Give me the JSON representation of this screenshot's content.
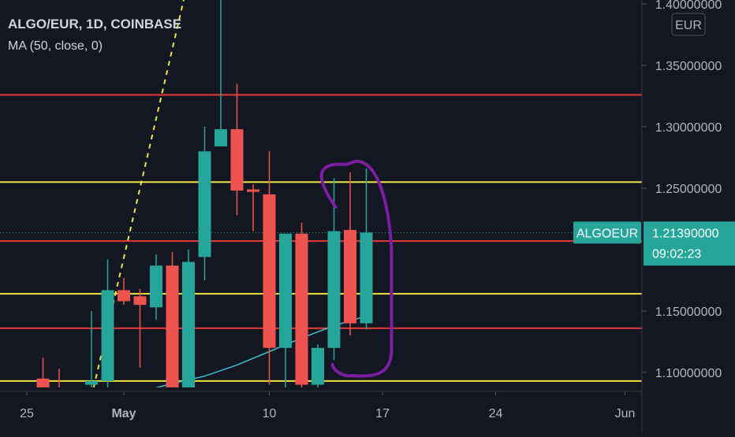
{
  "header": {
    "symbol_title": "ALGO/EUR, 1D, COINBASE",
    "indicator": "MA (50, close, 0)"
  },
  "currency_badge": "EUR",
  "price_tag": {
    "label": "ALGOEUR",
    "price": "1.21390000",
    "countdown": "09:02:23"
  },
  "colors": {
    "background": "#131722",
    "up": "#26a69a",
    "down": "#ef5350",
    "ma": "#3fbfcf",
    "yellow_line": "#f0e442",
    "red_line": "#e53935",
    "annotation": "#7b1fa2",
    "axis_text": "#b2b5be"
  },
  "chart_data": {
    "type": "candlestick",
    "title": "ALGO/EUR, 1D, COINBASE",
    "y_axis": {
      "ticks": [
        1.4,
        1.35,
        1.3,
        1.25,
        1.2,
        1.15,
        1.1
      ],
      "tick_labels": [
        "1.40000000",
        "1.35000000",
        "1.30000000",
        "1.25000000",
        "",
        "1.15000000",
        "1.10000000"
      ],
      "range": [
        1.0775,
        1.4025
      ]
    },
    "x_axis": {
      "tick_labels": [
        "25",
        "May",
        "10",
        "17",
        "24",
        "Jun"
      ],
      "tick_dates": [
        "2021-04-25",
        "2021-05-01",
        "2021-05-10",
        "2021-05-17",
        "2021-05-24",
        "2021-06-01"
      ],
      "range": [
        "2021-04-23",
        "2021-06-02"
      ]
    },
    "candles": [
      {
        "date": "2021-04-26",
        "open": 1.095,
        "high": 1.112,
        "low": 1.075,
        "close": 1.085
      },
      {
        "date": "2021-04-27",
        "open": 1.085,
        "high": 1.103,
        "low": 1.06,
        "close": 1.07
      },
      {
        "date": "2021-04-28",
        "open": 1.07,
        "high": 1.086,
        "low": 1.05,
        "close": 1.06
      },
      {
        "date": "2021-04-29",
        "open": 1.09,
        "high": 1.15,
        "low": 1.08,
        "close": 1.093
      },
      {
        "date": "2021-04-30",
        "open": 1.093,
        "high": 1.192,
        "low": 1.08,
        "close": 1.167
      },
      {
        "date": "2021-05-01",
        "open": 1.167,
        "high": 1.177,
        "low": 1.155,
        "close": 1.158
      },
      {
        "date": "2021-05-02",
        "open": 1.162,
        "high": 1.168,
        "low": 1.104,
        "close": 1.155
      },
      {
        "date": "2021-05-03",
        "open": 1.153,
        "high": 1.196,
        "low": 1.143,
        "close": 1.187
      },
      {
        "date": "2021-05-04",
        "open": 1.187,
        "high": 1.198,
        "low": 1.07,
        "close": 1.085
      },
      {
        "date": "2021-05-05",
        "open": 1.085,
        "high": 1.2,
        "low": 1.07,
        "close": 1.19
      },
      {
        "date": "2021-05-06",
        "open": 1.194,
        "high": 1.3,
        "low": 1.175,
        "close": 1.28
      },
      {
        "date": "2021-05-07",
        "open": 1.284,
        "high": 1.42,
        "low": 1.284,
        "close": 1.298
      },
      {
        "date": "2021-05-08",
        "open": 1.298,
        "high": 1.335,
        "low": 1.228,
        "close": 1.248
      },
      {
        "date": "2021-05-09",
        "open": 1.249,
        "high": 1.253,
        "low": 1.215,
        "close": 1.247
      },
      {
        "date": "2021-05-10",
        "open": 1.245,
        "high": 1.28,
        "low": 1.09,
        "close": 1.12
      },
      {
        "date": "2021-05-11",
        "open": 1.12,
        "high": 1.212,
        "low": 1.078,
        "close": 1.213
      },
      {
        "date": "2021-05-12",
        "open": 1.213,
        "high": 1.222,
        "low": 1.08,
        "close": 1.09
      },
      {
        "date": "2021-05-13",
        "open": 1.09,
        "high": 1.123,
        "low": 1.08,
        "close": 1.12
      },
      {
        "date": "2021-05-14",
        "open": 1.12,
        "high": 1.258,
        "low": 1.11,
        "close": 1.215
      },
      {
        "date": "2021-05-15",
        "open": 1.216,
        "high": 1.263,
        "low": 1.13,
        "close": 1.14
      },
      {
        "date": "2021-05-16",
        "open": 1.14,
        "high": 1.266,
        "low": 1.135,
        "close": 1.2139
      }
    ],
    "ma": {
      "label": "MA (50, close, 0)",
      "points": [
        {
          "date": "2021-04-30",
          "value": 1.076
        },
        {
          "date": "2021-05-02",
          "value": 1.084
        },
        {
          "date": "2021-05-04",
          "value": 1.091
        },
        {
          "date": "2021-05-06",
          "value": 1.097
        },
        {
          "date": "2021-05-08",
          "value": 1.106
        },
        {
          "date": "2021-05-10",
          "value": 1.117
        },
        {
          "date": "2021-05-12",
          "value": 1.128
        },
        {
          "date": "2021-05-14",
          "value": 1.138
        },
        {
          "date": "2021-05-16",
          "value": 1.146
        }
      ]
    },
    "horizontal_lines": [
      {
        "price": 1.326,
        "color": "red"
      },
      {
        "price": 1.255,
        "color": "yellow"
      },
      {
        "price": 1.207,
        "color": "red"
      },
      {
        "price": 1.164,
        "color": "yellow"
      },
      {
        "price": 1.136,
        "color": "red"
      },
      {
        "price": 1.093,
        "color": "yellow"
      }
    ],
    "trendline": {
      "style": "dashed",
      "color": "yellow",
      "from": {
        "date": "2021-04-29",
        "price": 1.08
      },
      "to": {
        "date": "2021-05-05",
        "price": 1.42
      }
    },
    "last_price": 1.2139,
    "grid": false,
    "annotation": "purple bracket around the 2021-05-14 to 2021-05-16 candles"
  }
}
